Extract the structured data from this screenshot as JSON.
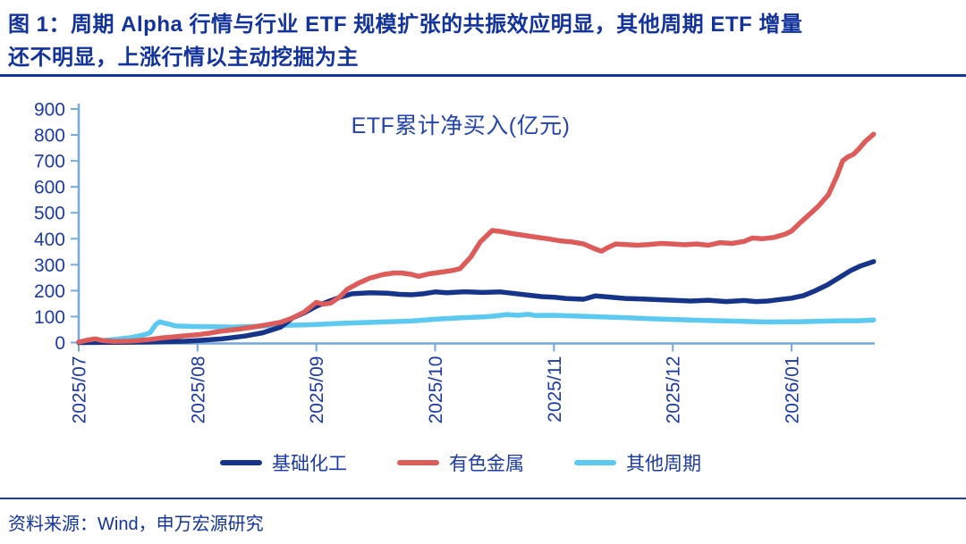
{
  "header": {
    "title_line1": "图 1：周期 Alpha 行情与行业 ETF 规模扩张的共振效应明显，其他周期 ETF 增量",
    "title_line2": "还不明显，上涨行情以主动挖掘为主"
  },
  "chart_data": {
    "type": "line",
    "title": "ETF累计净买入(亿元)",
    "ylabel": "",
    "xlabel": "",
    "ylim": [
      0,
      900
    ],
    "y_ticks": [
      900,
      800,
      700,
      600,
      500,
      400,
      300,
      200,
      100,
      0
    ],
    "x_ticks": [
      "2025/07",
      "2025/08",
      "2025/09",
      "2025/10",
      "2025/11",
      "2025/12",
      "2026/01"
    ],
    "grid": "off",
    "legend_position": "bottom",
    "axis_color": "#74A9DB",
    "label_color": "#1C3BA6",
    "series": [
      {
        "name": "基础化工",
        "color": "#16348A",
        "points": [
          [
            0,
            0
          ],
          [
            0.3,
            1
          ],
          [
            0.6,
            2
          ],
          [
            0.9,
            5
          ],
          [
            1.0,
            8
          ],
          [
            1.2,
            14
          ],
          [
            1.4,
            25
          ],
          [
            1.55,
            38
          ],
          [
            1.7,
            60
          ],
          [
            1.8,
            95
          ],
          [
            1.9,
            115
          ],
          [
            2.0,
            140
          ],
          [
            2.1,
            158
          ],
          [
            2.2,
            175
          ],
          [
            2.3,
            188
          ],
          [
            2.45,
            192
          ],
          [
            2.6,
            190
          ],
          [
            2.7,
            186
          ],
          [
            2.8,
            184
          ],
          [
            2.9,
            188
          ],
          [
            3.0,
            195
          ],
          [
            3.1,
            192
          ],
          [
            3.25,
            196
          ],
          [
            3.4,
            193
          ],
          [
            3.55,
            195
          ],
          [
            3.65,
            190
          ],
          [
            3.8,
            182
          ],
          [
            3.9,
            177
          ],
          [
            4.0,
            175
          ],
          [
            4.1,
            170
          ],
          [
            4.25,
            167
          ],
          [
            4.35,
            180
          ],
          [
            4.45,
            176
          ],
          [
            4.6,
            170
          ],
          [
            4.75,
            168
          ],
          [
            4.9,
            165
          ],
          [
            5.0,
            163
          ],
          [
            5.15,
            160
          ],
          [
            5.3,
            163
          ],
          [
            5.45,
            158
          ],
          [
            5.6,
            162
          ],
          [
            5.7,
            158
          ],
          [
            5.8,
            160
          ],
          [
            5.9,
            166
          ],
          [
            6.0,
            171
          ],
          [
            6.1,
            181
          ],
          [
            6.2,
            200
          ],
          [
            6.3,
            222
          ],
          [
            6.4,
            250
          ],
          [
            6.5,
            278
          ],
          [
            6.58,
            295
          ],
          [
            6.69,
            312
          ]
        ]
      },
      {
        "name": "有色金属",
        "color": "#DD5C5A",
        "points": [
          [
            0,
            2
          ],
          [
            0.08,
            10
          ],
          [
            0.14,
            14
          ],
          [
            0.2,
            8
          ],
          [
            0.3,
            4
          ],
          [
            0.45,
            6
          ],
          [
            0.6,
            12
          ],
          [
            0.7,
            18
          ],
          [
            0.8,
            22
          ],
          [
            0.9,
            26
          ],
          [
            1.0,
            30
          ],
          [
            1.1,
            36
          ],
          [
            1.2,
            44
          ],
          [
            1.35,
            52
          ],
          [
            1.5,
            62
          ],
          [
            1.6,
            70
          ],
          [
            1.7,
            78
          ],
          [
            1.8,
            95
          ],
          [
            1.9,
            118
          ],
          [
            2.0,
            155
          ],
          [
            2.06,
            148
          ],
          [
            2.12,
            152
          ],
          [
            2.2,
            177
          ],
          [
            2.26,
            205
          ],
          [
            2.35,
            228
          ],
          [
            2.45,
            248
          ],
          [
            2.56,
            262
          ],
          [
            2.65,
            268
          ],
          [
            2.72,
            268
          ],
          [
            2.8,
            263
          ],
          [
            2.86,
            255
          ],
          [
            2.95,
            265
          ],
          [
            3.06,
            272
          ],
          [
            3.15,
            278
          ],
          [
            3.21,
            285
          ],
          [
            3.3,
            330
          ],
          [
            3.38,
            388
          ],
          [
            3.48,
            432
          ],
          [
            3.55,
            428
          ],
          [
            3.65,
            420
          ],
          [
            3.75,
            413
          ],
          [
            3.85,
            406
          ],
          [
            3.95,
            400
          ],
          [
            4.05,
            392
          ],
          [
            4.15,
            388
          ],
          [
            4.25,
            380
          ],
          [
            4.35,
            360
          ],
          [
            4.4,
            352
          ],
          [
            4.45,
            365
          ],
          [
            4.52,
            380
          ],
          [
            4.6,
            378
          ],
          [
            4.7,
            375
          ],
          [
            4.8,
            378
          ],
          [
            4.9,
            382
          ],
          [
            5.0,
            380
          ],
          [
            5.1,
            377
          ],
          [
            5.2,
            380
          ],
          [
            5.3,
            375
          ],
          [
            5.4,
            385
          ],
          [
            5.5,
            382
          ],
          [
            5.6,
            390
          ],
          [
            5.67,
            403
          ],
          [
            5.75,
            400
          ],
          [
            5.85,
            405
          ],
          [
            5.95,
            418
          ],
          [
            6.0,
            430
          ],
          [
            6.08,
            465
          ],
          [
            6.16,
            498
          ],
          [
            6.23,
            528
          ],
          [
            6.31,
            570
          ],
          [
            6.38,
            640
          ],
          [
            6.43,
            700
          ],
          [
            6.47,
            714
          ],
          [
            6.52,
            725
          ],
          [
            6.57,
            748
          ],
          [
            6.62,
            775
          ],
          [
            6.69,
            803
          ]
        ]
      },
      {
        "name": "其他周期",
        "color": "#5CC9F0",
        "points": [
          [
            0,
            0
          ],
          [
            0.15,
            5
          ],
          [
            0.3,
            12
          ],
          [
            0.45,
            20
          ],
          [
            0.55,
            30
          ],
          [
            0.6,
            38
          ],
          [
            0.65,
            70
          ],
          [
            0.68,
            80
          ],
          [
            0.75,
            72
          ],
          [
            0.82,
            64
          ],
          [
            0.95,
            62
          ],
          [
            1.1,
            61
          ],
          [
            1.3,
            60
          ],
          [
            1.5,
            63
          ],
          [
            1.7,
            66
          ],
          [
            1.9,
            68
          ],
          [
            2.0,
            70
          ],
          [
            2.2,
            74
          ],
          [
            2.4,
            77
          ],
          [
            2.6,
            80
          ],
          [
            2.8,
            83
          ],
          [
            3.0,
            90
          ],
          [
            3.2,
            95
          ],
          [
            3.4,
            99
          ],
          [
            3.5,
            102
          ],
          [
            3.6,
            108
          ],
          [
            3.7,
            105
          ],
          [
            3.78,
            109
          ],
          [
            3.85,
            104
          ],
          [
            4.0,
            105
          ],
          [
            4.2,
            102
          ],
          [
            4.4,
            99
          ],
          [
            4.6,
            96
          ],
          [
            4.8,
            92
          ],
          [
            5.0,
            89
          ],
          [
            5.2,
            86
          ],
          [
            5.4,
            84
          ],
          [
            5.6,
            82
          ],
          [
            5.8,
            79
          ],
          [
            6.0,
            80
          ],
          [
            6.2,
            82
          ],
          [
            6.4,
            84
          ],
          [
            6.55,
            84
          ],
          [
            6.69,
            87
          ]
        ]
      }
    ],
    "draw_order": [
      2,
      0,
      1
    ]
  },
  "footer": {
    "source": "资料来源：Wind，申万宏源研究"
  }
}
